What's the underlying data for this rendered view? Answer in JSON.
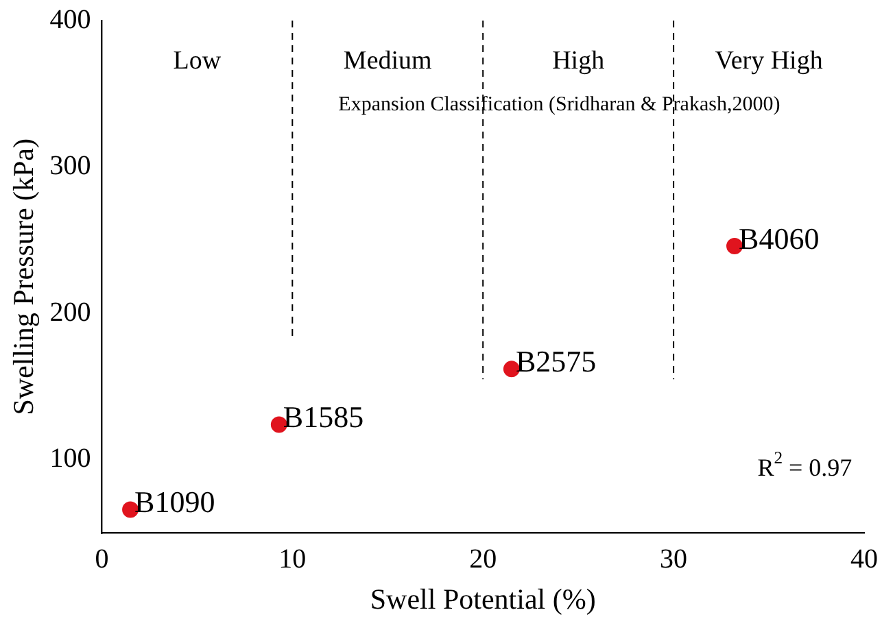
{
  "chart_data": {
    "type": "scatter",
    "xlabel": "Swell Potential (%)",
    "ylabel": "Swelling Pressure (kPa)",
    "xlim": [
      0,
      40
    ],
    "xticks": [
      0,
      10,
      20,
      30,
      40
    ],
    "ylim": [
      50,
      400
    ],
    "yticks": [
      100,
      200,
      300,
      400
    ],
    "marker": "circle",
    "grid": false,
    "legend": false,
    "series": [
      {
        "name": "B1090",
        "color": "#e0141e",
        "x": [
          1.5
        ],
        "values": [
          66
        ]
      },
      {
        "name": "B1585",
        "color": "#e0141e",
        "x": [
          9.3
        ],
        "values": [
          124
        ]
      },
      {
        "name": "B2575",
        "color": "#e0141e",
        "x": [
          21.5
        ],
        "values": [
          162
        ]
      },
      {
        "name": "B4060",
        "color": "#e0141e",
        "x": [
          33.2
        ],
        "values": [
          246
        ]
      }
    ],
    "ref_lines": [
      {
        "axis": "x",
        "value": 10,
        "line_style": "dashed"
      },
      {
        "axis": "x",
        "value": 20,
        "line_style": "dashed"
      },
      {
        "axis": "x",
        "value": 30,
        "line_style": "dashed"
      }
    ],
    "annotations": [
      "Low",
      "Medium",
      "High",
      "Very High",
      "Expansion Classification (Sridharan & Prakash,2000)",
      "R$^{2}$ = 0.97"
    ]
  }
}
